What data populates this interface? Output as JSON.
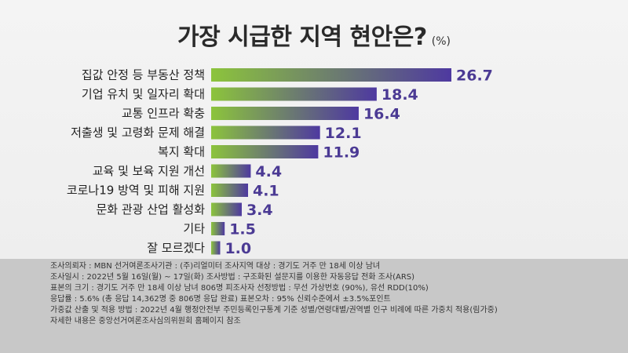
{
  "title": "가장 시급한 지역 현안은?",
  "unit": "(%)",
  "chart_data": {
    "type": "bar",
    "orientation": "horizontal",
    "categories": [
      "집값 안정 등 부동산 정책",
      "기업 유치 및 일자리 확대",
      "교통 인프라 확충",
      "저출생 및 고령화 문제 해결",
      "복지 확대",
      "교육 및 보육 지원 개선",
      "코로나19 방역 및 피해 지원",
      "문화 관광 산업 활성화",
      "기타",
      "잘 모르겠다"
    ],
    "values": [
      26.7,
      18.4,
      16.4,
      12.1,
      11.9,
      4.4,
      4.1,
      3.4,
      1.5,
      1.0
    ],
    "value_labels": [
      "26.7",
      "18.4",
      "16.4",
      "12.1",
      "11.9",
      "4.4",
      "4.1",
      "3.4",
      "1.5",
      "1.0"
    ],
    "xlim": [
      0,
      26.7
    ],
    "colors": {
      "bar_start": "#8cc43c",
      "bar_end": "#4e39a0",
      "value_text": "#4b3a94"
    },
    "grid": false,
    "legend": "none"
  },
  "footer": {
    "lines": [
      "조사의뢰자 : MBN          선거여론조사기관 : (주)리얼미터          조사지역 대상 : 경기도 거주 만 18세 이상 남녀",
      "조사일시 : 2022년 5월 16일(월) ~ 17일(화)          조사방법 : 구조화된 설문지를 이용한 자동응답 전화 조사(ARS)",
      "표본의 크기 : 경기도 거주 만 18세 이상 남녀 806명          피조사자 선정방법 : 무선 가상번호 (90%), 유선 RDD(10%)",
      "응답률 : 5.6% (총 응답 14,362명 중 806명 응답 완료)          표본오차 : 95% 신뢰수준에서 ±3.5%포인트",
      "가중값 산출 및 적용 방법 : 2022년 4월 행정안전부 주민등록인구통계 기준 성별/연령대별/권역별 인구 비례에 따른 가중치 적용(림가중)",
      "자세한 내용은 중앙선거여론조사심의위원회 홈페이지 참조"
    ]
  }
}
